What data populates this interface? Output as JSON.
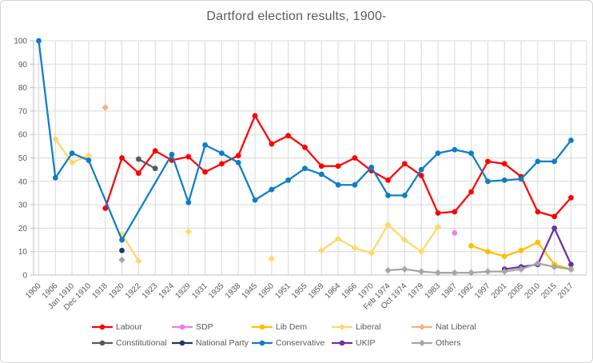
{
  "chart_data": {
    "type": "line",
    "title": "Dartford election results, 1900-",
    "xlabel": "",
    "ylabel": "",
    "grid": true,
    "legend_position": "bottom",
    "y_axis": {
      "min": 0,
      "max": 100,
      "step": 10,
      "ticks": [
        0,
        10,
        20,
        30,
        40,
        50,
        60,
        70,
        80,
        90,
        100
      ]
    },
    "categories": [
      "1900",
      "1906",
      "Jan 1910",
      "Dec 1910",
      "1918",
      "1920",
      "1922",
      "1923",
      "1924",
      "1929",
      "1931",
      "1935",
      "1938",
      "1945",
      "1950",
      "1951",
      "1955",
      "1959",
      "1964",
      "1966",
      "1970",
      "Feb 1974",
      "Oct 1974",
      "1979",
      "1983",
      "1987",
      "1992",
      "1997",
      "2001",
      "2005",
      "2010",
      "2015",
      "2017"
    ],
    "legend_rows": [
      [
        "Labour",
        "SDP",
        "Lib Dem",
        "Liberal",
        "Nat Liberal"
      ],
      [
        "Constitutional",
        "National Party",
        "Conservative",
        "UKIP",
        "Others"
      ]
    ],
    "series": [
      {
        "name": "Labour",
        "color": "#FF0000",
        "marker": "circle",
        "segments": [
          [
            [
              "1918",
              28.5
            ],
            [
              "1920",
              50
            ],
            [
              "1922",
              43.5
            ],
            [
              "1923",
              53
            ],
            [
              "1924",
              49
            ],
            [
              "1929",
              50.5
            ],
            [
              "1931",
              44
            ],
            [
              "1935",
              47.5
            ],
            [
              "1938",
              51
            ],
            [
              "1945",
              68
            ],
            [
              "1950",
              56
            ],
            [
              "1951",
              59.5
            ],
            [
              "1955",
              54.5
            ],
            [
              "1959",
              46.5
            ],
            [
              "1964",
              46.5
            ],
            [
              "1966",
              50
            ],
            [
              "1970",
              44.5
            ],
            [
              "Feb 1974",
              40.5
            ],
            [
              "Oct 1974",
              47.5
            ],
            [
              "1979",
              42.5
            ],
            [
              "1983",
              26.5
            ],
            [
              "1987",
              27
            ],
            [
              "1992",
              35.5
            ],
            [
              "1997",
              48.5
            ],
            [
              "2001",
              47.5
            ],
            [
              "2005",
              42
            ],
            [
              "2010",
              27
            ],
            [
              "2015",
              25
            ],
            [
              "2017",
              33
            ]
          ]
        ]
      },
      {
        "name": "SDP",
        "color": "#ED7EED",
        "marker": "circle",
        "segments": [
          [
            [
              "1987",
              18
            ]
          ]
        ]
      },
      {
        "name": "Lib Dem",
        "color": "#FFC000",
        "marker": "circle",
        "segments": [
          [
            [
              "1992",
              12.5
            ],
            [
              "1997",
              10
            ],
            [
              "2001",
              8
            ],
            [
              "2005",
              10.5
            ],
            [
              "2010",
              14
            ],
            [
              "2015",
              4.5
            ],
            [
              "2017",
              2.5
            ]
          ]
        ]
      },
      {
        "name": "Liberal",
        "color": "#FFD966",
        "marker": "diamond",
        "segments": [
          [
            [
              "1906",
              58
            ],
            [
              "Jan 1910",
              48
            ],
            [
              "Dec 1910",
              51
            ]
          ],
          [
            [
              "1920",
              17.5
            ],
            [
              "1922",
              6
            ]
          ],
          [
            [
              "1929",
              18.5
            ]
          ],
          [
            [
              "1950",
              7
            ]
          ],
          [
            [
              "1959",
              10.5
            ],
            [
              "1964",
              15.5
            ],
            [
              "1966",
              11.5
            ],
            [
              "1970",
              9.5
            ],
            [
              "Feb 1974",
              21.5
            ],
            [
              "Oct 1974",
              15
            ],
            [
              "1979",
              10
            ],
            [
              "1983",
              20.5
            ]
          ]
        ]
      },
      {
        "name": "Nat Liberal",
        "color": "#F4B183",
        "marker": "diamond",
        "segments": [
          [
            [
              "1918",
              71.5
            ]
          ]
        ]
      },
      {
        "name": "Constitutional",
        "color": "#595959",
        "marker": "circle",
        "segments": [
          [
            [
              "1922",
              49.5
            ],
            [
              "1923",
              45.5
            ]
          ]
        ]
      },
      {
        "name": "National Party",
        "color": "#1F3864",
        "marker": "circle",
        "segments": [
          [
            [
              "1920",
              10.5
            ]
          ]
        ]
      },
      {
        "name": "Conservative",
        "color": "#0E7DC9",
        "marker": "circle",
        "segments": [
          [
            [
              "1900",
              100
            ],
            [
              "1906",
              41.5
            ],
            [
              "Jan 1910",
              52
            ],
            [
              "Dec 1910",
              49
            ],
            [
              "1920",
              15
            ],
            [
              "1924",
              51.5
            ],
            [
              "1929",
              31
            ],
            [
              "1931",
              55.5
            ],
            [
              "1935",
              52
            ],
            [
              "1938",
              48
            ],
            [
              "1945",
              32
            ],
            [
              "1950",
              36.5
            ],
            [
              "1951",
              40.5
            ],
            [
              "1955",
              45.5
            ],
            [
              "1959",
              43
            ],
            [
              "1964",
              38.5
            ],
            [
              "1966",
              38.5
            ],
            [
              "1970",
              46
            ],
            [
              "Feb 1974",
              34
            ],
            [
              "Oct 1974",
              34
            ],
            [
              "1979",
              45
            ],
            [
              "1983",
              52
            ],
            [
              "1987",
              53.5
            ],
            [
              "1992",
              52
            ],
            [
              "1997",
              40
            ],
            [
              "2001",
              40.5
            ],
            [
              "2005",
              41
            ],
            [
              "2010",
              48.5
            ],
            [
              "2015",
              48.5
            ],
            [
              "2017",
              57.5
            ]
          ]
        ]
      },
      {
        "name": "UKIP",
        "color": "#7030A0",
        "marker": "circle",
        "segments": [
          [
            [
              "2001",
              2.5
            ],
            [
              "2005",
              3.5
            ],
            [
              "2010",
              4.5
            ],
            [
              "2015",
              20
            ],
            [
              "2017",
              4.5
            ]
          ]
        ]
      },
      {
        "name": "Others",
        "color": "#A6A6A6",
        "marker": "diamond",
        "segments": [
          [
            [
              "1920",
              6.5
            ]
          ],
          [
            [
              "Feb 1974",
              2
            ],
            [
              "Oct 1974",
              2.5
            ],
            [
              "1979",
              1.5
            ],
            [
              "1983",
              1
            ],
            [
              "1987",
              1
            ],
            [
              "1992",
              1
            ],
            [
              "1997",
              1.5
            ],
            [
              "2001",
              1.5
            ],
            [
              "2005",
              2.5
            ],
            [
              "2010",
              5
            ],
            [
              "2015",
              3.5
            ],
            [
              "2017",
              2.5
            ]
          ]
        ]
      }
    ]
  }
}
